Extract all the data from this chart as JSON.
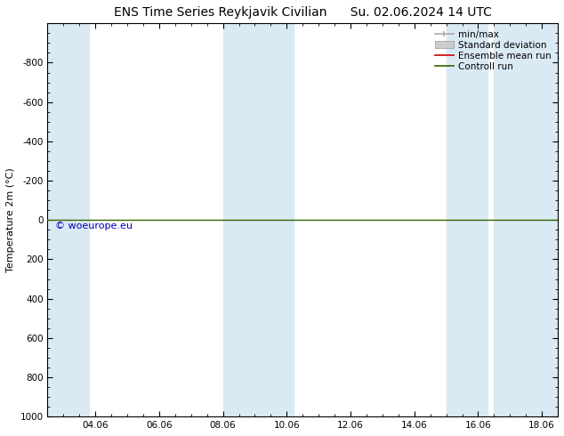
{
  "title": "ENS Time Series Reykjavik Civilian",
  "title2": "Su. 02.06.2024 14 UTC",
  "ylabel": "Temperature 2m (°C)",
  "ylim_top": -1000,
  "ylim_bottom": 1000,
  "yticks": [
    -800,
    -600,
    -400,
    -200,
    0,
    200,
    400,
    600,
    800,
    1000
  ],
  "xlim_start": 2.5,
  "xlim_end": 18.5,
  "xtick_labels": [
    "04.06",
    "06.06",
    "08.06",
    "10.06",
    "12.06",
    "14.06",
    "16.06",
    "18.06"
  ],
  "xtick_positions": [
    4,
    6,
    8,
    10,
    12,
    14,
    16,
    18
  ],
  "blue_bands": [
    [
      2.5,
      3.8
    ],
    [
      8.0,
      10.2
    ],
    [
      15.0,
      16.3
    ],
    [
      16.5,
      18.5
    ]
  ],
  "band_color": "#daeaf5",
  "green_line_y": 0,
  "green_line_color": "#336600",
  "red_line_color": "#cc0000",
  "watermark_text": "© woeurope.eu",
  "watermark_color": "#0000bb",
  "bg_color": "#ffffff",
  "legend_items": [
    "min/max",
    "Standard deviation",
    "Ensemble mean run",
    "Controll run"
  ],
  "legend_colors": [
    "#aaaaaa",
    "#cccccc",
    "#cc0000",
    "#336600"
  ],
  "fontsize_title": 10,
  "fontsize_axis": 8,
  "fontsize_ticks": 7.5,
  "fontsize_legend": 7.5,
  "fontsize_watermark": 8
}
